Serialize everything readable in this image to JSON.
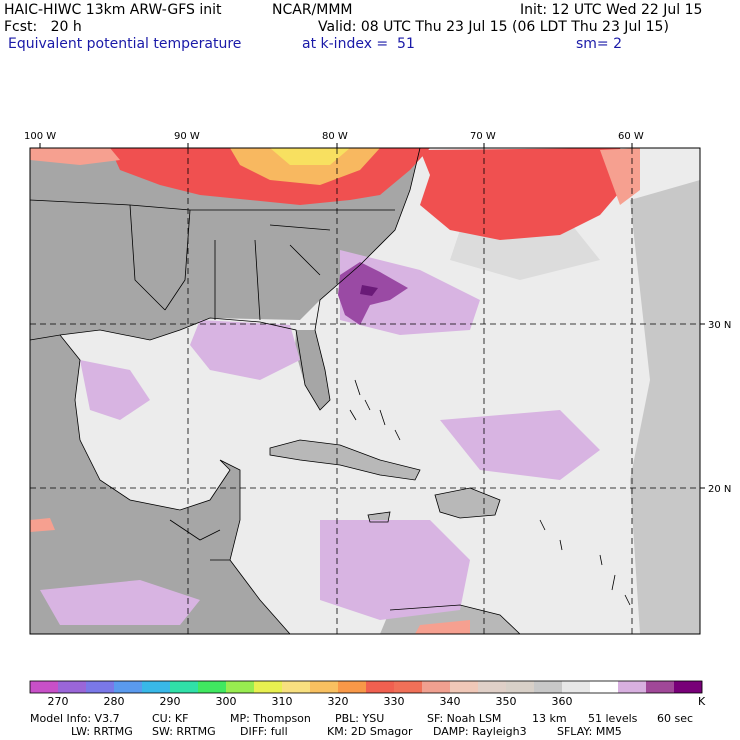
{
  "header": {
    "model": "HAIC-HIWC 13km ARW-GFS init",
    "org": "NCAR/MMM",
    "init": "Init: 12 UTC Wed 22 Jul 15",
    "fcst": "Fcst:   20 h",
    "valid": "Valid: 08 UTC Thu 23 Jul 15 (06 LDT Thu 23 Jul 15)",
    "field": "Equivalent potential temperature",
    "level": "at k-index =  51",
    "smooth": "sm= 2"
  },
  "map": {
    "lon_labels": [
      "100 W",
      "90 W",
      "80 W",
      "70 W",
      "60 W"
    ],
    "lat_labels": [
      "30 N",
      "20 N"
    ],
    "colors": {
      "land_gray": "#9e9e9e",
      "ocean_light": "#ececec",
      "mid_gray": "#c8c8c8",
      "lavender": "#d8b4e2",
      "purple": "#9a4aa4",
      "red": "#f05050",
      "salmon": "#f6a090",
      "orange": "#f8b860",
      "yellow": "#f8e060"
    }
  },
  "colorbar": {
    "colors": [
      "#c850c8",
      "#9a66d8",
      "#7a78e8",
      "#5a9aee",
      "#38b8e8",
      "#30e0a8",
      "#40e860",
      "#98ec50",
      "#e8f050",
      "#f8e080",
      "#f8c060",
      "#f89848",
      "#f06050",
      "#f07058",
      "#f0a090",
      "#f0c8b8",
      "#e0d0c8",
      "#d8d0c8",
      "#c8c8c8",
      "#e8e8e8",
      "#ffffff",
      "#d8b0e0",
      "#a04898",
      "#780078"
    ],
    "ticks": [
      "270",
      "280",
      "290",
      "300",
      "310",
      "320",
      "330",
      "340",
      "350",
      "360"
    ],
    "unit": "K"
  },
  "footer": {
    "line1": [
      "Model Info: V3.7",
      "CU: KF",
      "MP: Thompson",
      "PBL: YSU",
      "SF: Noah LSM",
      "13 km",
      "51 levels",
      "60 sec"
    ],
    "line2": [
      "LW: RRTMG",
      "SW: RRTMG",
      "DIFF: full",
      "KM: 2D Smagor",
      "DAMP: Rayleigh3",
      "SFLAY: MM5"
    ]
  }
}
